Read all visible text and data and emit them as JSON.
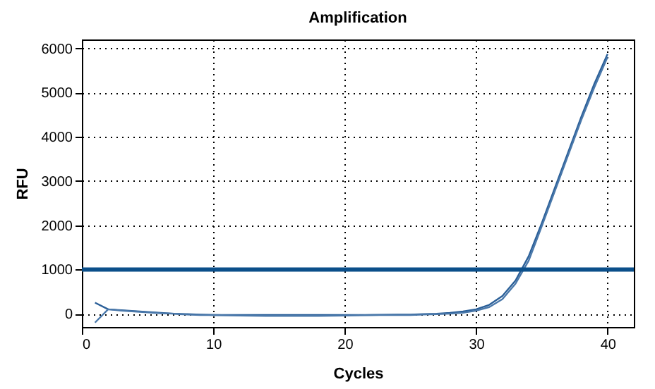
{
  "chart_data": {
    "type": "line",
    "title": "Amplification",
    "xlabel": "Cycles",
    "ylabel": "RFU",
    "x": [
      1,
      2,
      3,
      4,
      5,
      6,
      7,
      8,
      9,
      10,
      12,
      14,
      16,
      18,
      20,
      22,
      24,
      25,
      26,
      27,
      28,
      29,
      30,
      31,
      32,
      33,
      34,
      35,
      36,
      37,
      38,
      39,
      40
    ],
    "series": [
      {
        "color": "#2a5f98",
        "values": [
          250,
          100,
          80,
          60,
          40,
          20,
          0,
          -10,
          -20,
          -30,
          -30,
          -30,
          -30,
          -30,
          -30,
          -30,
          -20,
          -20,
          -10,
          0,
          20,
          50,
          100,
          200,
          400,
          750,
          1300,
          2050,
          2850,
          3650,
          4450,
          5200,
          5870
        ]
      },
      {
        "color": "#4a78aa",
        "values": [
          -200,
          100,
          70,
          50,
          30,
          10,
          0,
          -20,
          -30,
          -30,
          -40,
          -50,
          -50,
          -50,
          -40,
          -30,
          -30,
          -30,
          -20,
          -10,
          0,
          20,
          70,
          150,
          330,
          680,
          1200,
          1980,
          2780,
          3580,
          4380,
          5120,
          5800
        ]
      }
    ],
    "ref_lines": [
      {
        "axis": "y",
        "value": 1000,
        "color": "#0b4f8a"
      }
    ],
    "xlim": [
      0,
      42
    ],
    "xticks": [
      0,
      10,
      20,
      30,
      40
    ],
    "ylim": [
      -300,
      6200
    ],
    "yticks": [
      0,
      1000,
      2000,
      3000,
      4000,
      5000,
      6000
    ],
    "grid": true,
    "legend": false,
    "marker": "none",
    "line_style": "solid"
  }
}
